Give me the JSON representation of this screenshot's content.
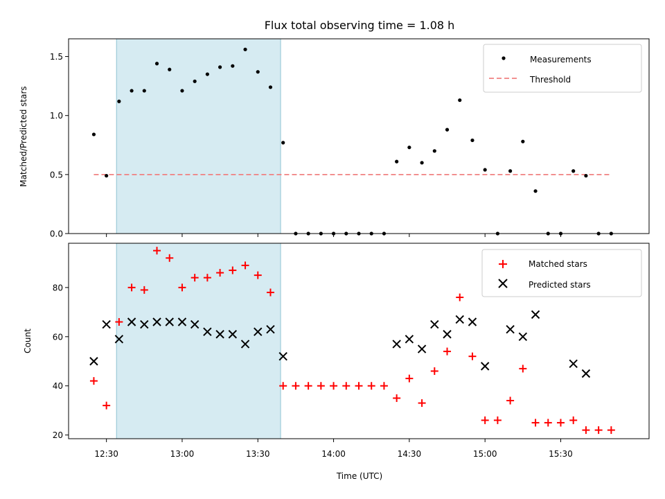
{
  "chart_data": {
    "title": "Flux total observing time = 1.08 h",
    "xlabel": "Time (UTC)",
    "x_tick_labels": [
      "12:30",
      "13:00",
      "13:30",
      "14:00",
      "14:30",
      "15:00",
      "15:30"
    ],
    "x_ticks": [
      "12:30",
      "13:00",
      "13:30",
      "14:00",
      "14:30",
      "15:00",
      "15:30"
    ],
    "xlim": [
      "12:15",
      "16:05"
    ],
    "shaded_region": {
      "start": "12:34",
      "end": "13:39",
      "color": "#add8e6"
    },
    "x": [
      "12:25",
      "12:30",
      "12:35",
      "12:40",
      "12:45",
      "12:50",
      "12:55",
      "13:00",
      "13:05",
      "13:10",
      "13:15",
      "13:20",
      "13:25",
      "13:30",
      "13:35",
      "13:40",
      "13:45",
      "13:50",
      "13:55",
      "14:00",
      "14:05",
      "14:10",
      "14:15",
      "14:20",
      "14:25",
      "14:30",
      "14:35",
      "14:40",
      "14:45",
      "14:50",
      "14:55",
      "15:00",
      "15:05",
      "15:10",
      "15:15",
      "15:20",
      "15:25",
      "15:30",
      "15:35",
      "15:40",
      "15:45",
      "15:50",
      "15:55"
    ],
    "panels": [
      {
        "type": "scatter",
        "ylabel": "Matched/Predicted stars",
        "ylim": [
          0,
          1.65
        ],
        "y_ticks": [
          0.0,
          0.5,
          1.0,
          1.5
        ],
        "y_tick_labels": [
          "0.0",
          "0.5",
          "1.0",
          "1.5"
        ],
        "legend_position": "top-right",
        "series": [
          {
            "name": "Measurements",
            "type": "scatter",
            "marker": "dot",
            "color": "#000000",
            "values": [
              0.84,
              0.49,
              1.12,
              1.21,
              1.21,
              1.44,
              1.39,
              1.21,
              1.29,
              1.35,
              1.41,
              1.42,
              1.56,
              1.37,
              1.24,
              0.77,
              0,
              0,
              0,
              0,
              0,
              0,
              0,
              0,
              0.61,
              0.73,
              0.6,
              0.7,
              0.88,
              1.13,
              0.79,
              0.54,
              0,
              0.53,
              0.78,
              0.36,
              0,
              0,
              0.53,
              0.49,
              0,
              0,
              null
            ]
          },
          {
            "name": "Threshold",
            "type": "line",
            "style": "dashed",
            "color": "#f08080",
            "x_range": [
              "12:25",
              "15:50"
            ],
            "value": 0.5
          }
        ]
      },
      {
        "type": "scatter",
        "ylabel": "Count",
        "ylim": [
          18.5,
          98
        ],
        "y_ticks": [
          20,
          40,
          60,
          80
        ],
        "y_tick_labels": [
          "20",
          "40",
          "60",
          "80"
        ],
        "legend_position": "top-right",
        "series": [
          {
            "name": "Matched stars",
            "marker": "plus",
            "color": "#ff0000",
            "values": [
              42,
              32,
              66,
              80,
              79,
              95,
              92,
              80,
              84,
              84,
              86,
              87,
              89,
              85,
              78,
              40,
              40,
              40,
              40,
              40,
              40,
              40,
              40,
              40,
              35,
              43,
              33,
              46,
              54,
              76,
              52,
              26,
              26,
              34,
              47,
              25,
              25,
              25,
              26,
              22,
              22,
              22,
              null
            ]
          },
          {
            "name": "Predicted stars",
            "marker": "x",
            "color": "#000000",
            "values": [
              50,
              65,
              59,
              66,
              65,
              66,
              66,
              66,
              65,
              62,
              61,
              61,
              57,
              62,
              63,
              52,
              null,
              null,
              null,
              null,
              null,
              null,
              null,
              null,
              57,
              59,
              55,
              65,
              61,
              67,
              66,
              48,
              null,
              63,
              60,
              69,
              null,
              null,
              49,
              45,
              null,
              null,
              null
            ]
          }
        ]
      }
    ]
  }
}
